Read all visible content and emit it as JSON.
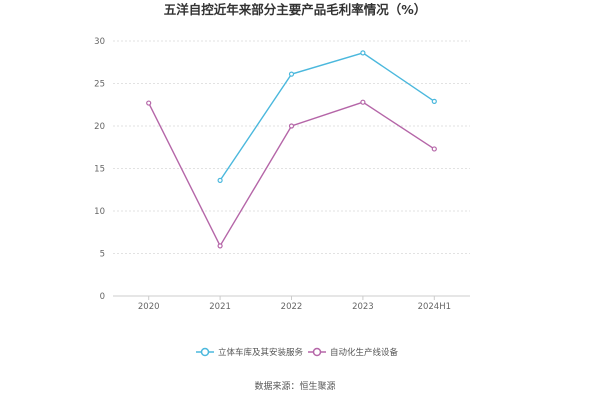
{
  "chart_data": {
    "type": "line",
    "title": "五洋自控近年来部分主要产品毛利率情况（%）",
    "categories": [
      "2020",
      "2021",
      "2022",
      "2023",
      "2024H1"
    ],
    "ylim": [
      0,
      30
    ],
    "yticks": [
      "0",
      "5",
      "10",
      "15",
      "20",
      "25",
      "30"
    ],
    "grid": true,
    "legend_position": "bottom",
    "series": [
      {
        "name": "立体车库及其安装服务",
        "color": "#4bb8dd",
        "values": [
          null,
          13.6,
          26.1,
          28.6,
          22.9
        ]
      },
      {
        "name": "自动化生产线设备",
        "color": "#b566a8",
        "values": [
          22.7,
          5.9,
          20.0,
          22.8,
          17.3
        ]
      }
    ],
    "source": "数据来源：恒生聚源"
  }
}
